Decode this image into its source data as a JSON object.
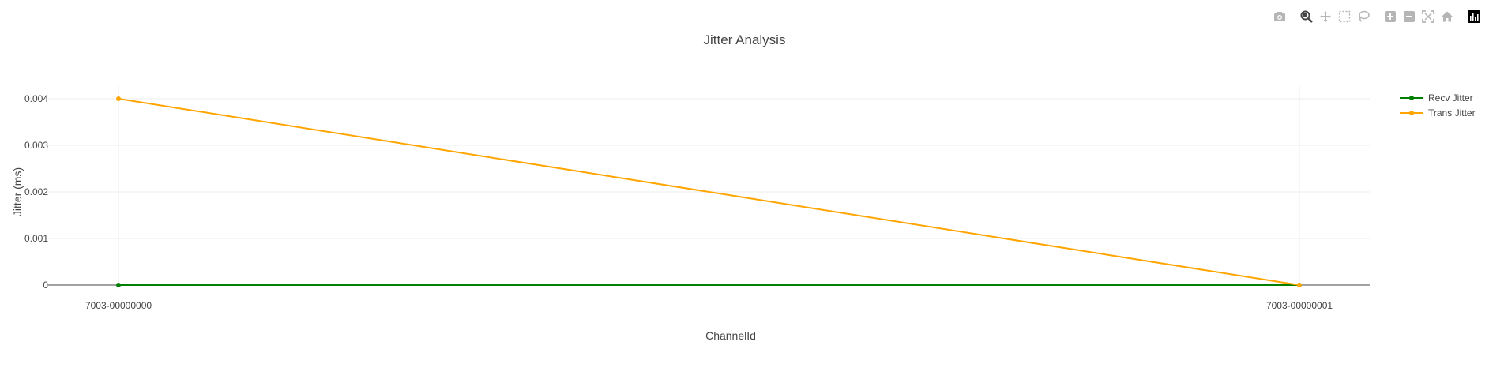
{
  "chart_data": {
    "type": "line",
    "title": "Jitter Analysis",
    "xlabel": "ChannelId",
    "ylabel": "Jitter (ms)",
    "categories": [
      "7003-00000000",
      "7003-00000001"
    ],
    "ylim": [
      0,
      0.0044
    ],
    "yticks": [
      0,
      0.001,
      0.002,
      0.003,
      0.004
    ],
    "ytick_labels": [
      "0",
      "0.001",
      "0.002",
      "0.003",
      "0.004"
    ],
    "grid": true,
    "legend_position": "top-right",
    "series": [
      {
        "name": "Recv Jitter",
        "color": "#008000",
        "values": [
          0,
          0
        ]
      },
      {
        "name": "Trans Jitter",
        "color": "#FFA500",
        "values": [
          0.004,
          0
        ]
      }
    ]
  },
  "modebar": {
    "icons": [
      "camera-icon",
      "zoom-icon",
      "pan-icon",
      "box-select-icon",
      "lasso-select-icon",
      "zoom-in-icon",
      "zoom-out-icon",
      "autoscale-icon",
      "reset-axes-icon",
      "plotly-logo-icon"
    ]
  }
}
